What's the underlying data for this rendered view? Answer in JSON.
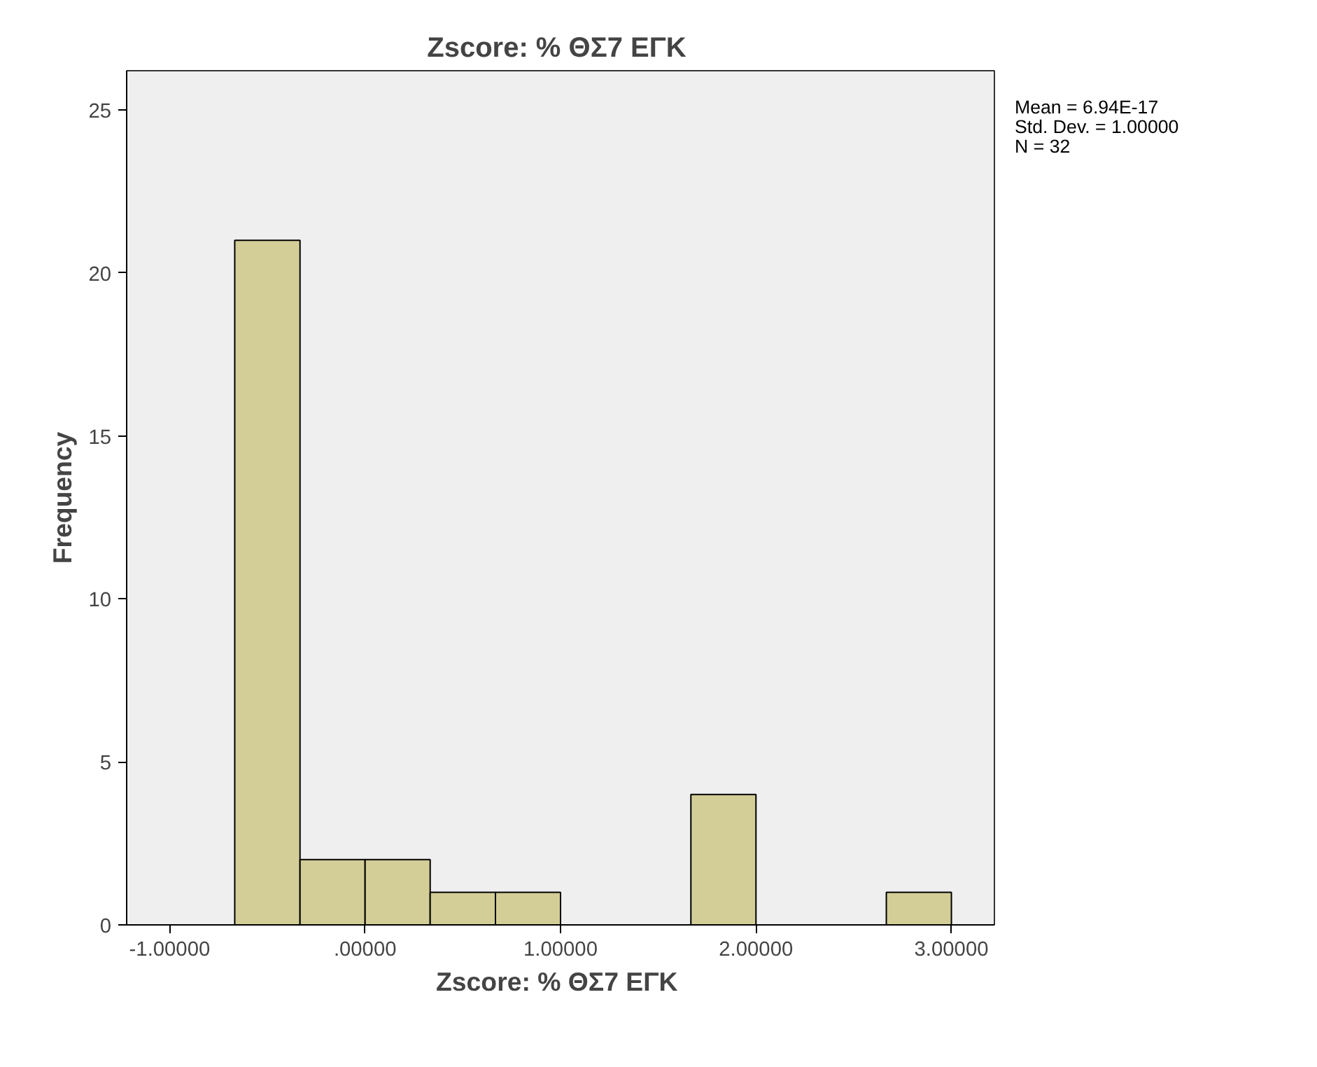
{
  "chart_data": {
    "type": "histogram",
    "title": "Zscore:  % ΘΣ7 ΕΓΚ",
    "xlabel": "Zscore:  % ΘΣ7 ΕΓΚ",
    "ylabel": "Frequency",
    "bins": [
      -0.667,
      -0.333,
      0,
      0.333,
      0.667,
      1.0,
      1.333,
      1.667,
      2.0,
      2.333,
      2.667,
      3.0
    ],
    "values": [
      21,
      2,
      2,
      1,
      1,
      0,
      0,
      4,
      0,
      0,
      1
    ],
    "color": "#d3ce97",
    "xlim": [
      -1.22,
      3.22
    ],
    "ylim": [
      0,
      26.2
    ],
    "xticks": [
      {
        "value": -1,
        "label": "-1.00000"
      },
      {
        "value": 0,
        "label": ".00000"
      },
      {
        "value": 1,
        "label": "1.00000"
      },
      {
        "value": 2,
        "label": "2.00000"
      },
      {
        "value": 3,
        "label": "3.00000"
      }
    ],
    "yticks": [
      0,
      5,
      10,
      15,
      20,
      25
    ],
    "grid": false,
    "annotations": [
      "Mean = 6.94E-17",
      "Std. Dev. = 1.00000",
      "N = 32"
    ]
  }
}
